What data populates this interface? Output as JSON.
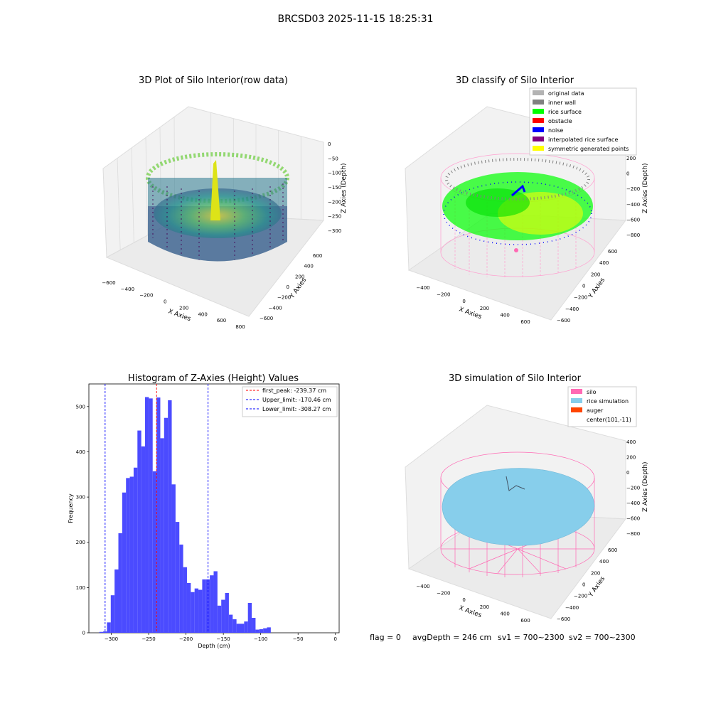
{
  "figure": {
    "suptitle": "BRCSD03 2025-11-15 18:25:31",
    "footer": {
      "flag": "flag = 0",
      "avg_depth": "avgDepth = 246 cm",
      "sv1": "sv1 = 700~2300",
      "sv2": "sv2 = 700~2300"
    }
  },
  "panels": {
    "raw": {
      "title": "3D Plot of Silo Interior(row data)",
      "xlabel": "X Axies",
      "ylabel": "Y Axies",
      "zlabel": "Z Axies (Depth)",
      "xticks": [
        "−600",
        "−400",
        "−200",
        "0",
        "200",
        "400",
        "600",
        "800"
      ],
      "yticks": [
        "−600",
        "−400",
        "−200",
        "0",
        "200",
        "400",
        "600"
      ],
      "zticks": [
        "0",
        "−50",
        "−100",
        "−150",
        "−200",
        "−250",
        "−300"
      ]
    },
    "classify": {
      "title": "3D classify of Silo Interior",
      "xlabel": "X Axies",
      "ylabel": "Y Axies",
      "zlabel": "Z Axies (Depth)",
      "xticks": [
        "−400",
        "−200",
        "0",
        "200",
        "400",
        "600"
      ],
      "yticks": [
        "−600",
        "−400",
        "−200",
        "0",
        "200",
        "400",
        "600"
      ],
      "zticks": [
        "200",
        "0",
        "−200",
        "−400",
        "−600",
        "−800"
      ],
      "legend": [
        {
          "label": "original data",
          "color": "#b3b3b3"
        },
        {
          "label": "inner wall",
          "color": "#808080"
        },
        {
          "label": "rice surface",
          "color": "#00ff00"
        },
        {
          "label": "obstacle",
          "color": "#ff0000"
        },
        {
          "label": "noise",
          "color": "#0000ff"
        },
        {
          "label": "interpolated rice surface",
          "color": "#800080"
        },
        {
          "label": "symmetric generated points",
          "color": "#ffff00"
        }
      ]
    },
    "simulation": {
      "title": "3D simulation of Silo Interior",
      "xlabel": "X Axies",
      "ylabel": "Y Axies",
      "zlabel": "Z Axies (Depth)",
      "xticks": [
        "−400",
        "−200",
        "0",
        "200",
        "400",
        "600"
      ],
      "yticks": [
        "−600",
        "−400",
        "−200",
        "0",
        "200",
        "400",
        "600"
      ],
      "zticks": [
        "400",
        "200",
        "0",
        "−200",
        "−400",
        "−600",
        "−800"
      ],
      "legend": [
        {
          "label": "silo",
          "color": "#ff69b4"
        },
        {
          "label": "rice simulation",
          "color": "#87ceeb"
        },
        {
          "label": "auger",
          "color": "#ff4500"
        },
        {
          "label": "center(101,-11)",
          "color": ""
        }
      ]
    }
  },
  "chart_data": {
    "type": "bar",
    "title": "Histogram of Z-Axies (Height) Values",
    "xlabel": "Depth (cm)",
    "ylabel": "Frequency",
    "xlim": [
      -330,
      5
    ],
    "ylim": [
      0,
      550
    ],
    "xticks": [
      -300,
      -250,
      -200,
      -150,
      -100,
      -50,
      0
    ],
    "yticks": [
      0,
      100,
      200,
      300,
      400,
      500
    ],
    "bar_color": "#4b4bff",
    "bin_start": -316,
    "bin_width": 5.1,
    "values": [
      2,
      3,
      23,
      83,
      140,
      220,
      310,
      342,
      345,
      365,
      447,
      412,
      521,
      518,
      357,
      520,
      430,
      475,
      514,
      328,
      245,
      195,
      145,
      110,
      90,
      98,
      95,
      118,
      118,
      127,
      136,
      60,
      73,
      88,
      40,
      30,
      20,
      20,
      25,
      66,
      33,
      7,
      8,
      10,
      12
    ],
    "lines": [
      {
        "label": "first_peak: -239.37 cm",
        "x": -239.37,
        "color": "#ff0000"
      },
      {
        "label": "Upper_limit: -170.46 cm",
        "x": -170.46,
        "color": "#0000ff"
      },
      {
        "label": "Lower_limit: -308.27 cm",
        "x": -308.27,
        "color": "#0000ff"
      }
    ]
  }
}
